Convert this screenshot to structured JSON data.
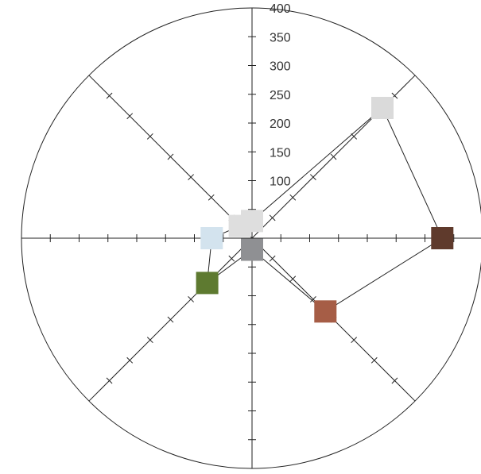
{
  "chart_data": {
    "type": "radar",
    "title": "",
    "axes_count": 8,
    "r_range": [
      0,
      400
    ],
    "r_ticks": [
      50,
      100,
      150,
      200,
      250,
      300,
      350,
      400
    ],
    "r_tick_labels": [
      "",
      "100",
      "150",
      "200",
      "250",
      "300",
      "350",
      "400"
    ],
    "grid": false,
    "series": [
      {
        "values": [
          30,
          320,
          330,
          180,
          20,
          110,
          70,
          30
        ],
        "marker_colors": [
          "#dedede",
          "#dadada",
          "#5f3a2c",
          "#a65d46",
          "#8f9093",
          "#5e7a30",
          "#d3e3ee",
          "#dedede"
        ]
      }
    ]
  }
}
